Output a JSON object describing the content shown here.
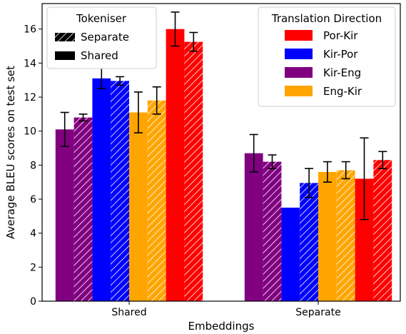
{
  "chart_data": {
    "type": "bar",
    "xlabel": "Embeddings",
    "ylabel": "Average BLEU scores on test set",
    "ylim": [
      0,
      17.5
    ],
    "yticks": [
      0,
      2,
      4,
      6,
      8,
      10,
      12,
      14,
      16
    ],
    "categories": [
      "Shared",
      "Separate"
    ],
    "grid": false,
    "colors": {
      "Por-Kir": "#ff0000",
      "Kir-Por": "#0000ff",
      "Kir-Eng": "#800080",
      "Eng-Kir": "#ffa500"
    },
    "bars_order": [
      {
        "direction": "Kir-Eng",
        "tokeniser": "Shared"
      },
      {
        "direction": "Kir-Eng",
        "tokeniser": "Separate"
      },
      {
        "direction": "Kir-Por",
        "tokeniser": "Shared"
      },
      {
        "direction": "Kir-Por",
        "tokeniser": "Separate"
      },
      {
        "direction": "Eng-Kir",
        "tokeniser": "Shared"
      },
      {
        "direction": "Eng-Kir",
        "tokeniser": "Separate"
      },
      {
        "direction": "Por-Kir",
        "tokeniser": "Shared"
      },
      {
        "direction": "Por-Kir",
        "tokeniser": "Separate"
      }
    ],
    "values": {
      "Shared": [
        10.1,
        10.8,
        13.1,
        12.95,
        11.1,
        11.8,
        16.0,
        15.25
      ],
      "Separate": [
        8.7,
        8.2,
        5.5,
        6.95,
        7.6,
        7.7,
        7.2,
        8.3
      ]
    },
    "errors": {
      "Shared": [
        1.0,
        0.2,
        0.6,
        0.25,
        1.2,
        0.8,
        1.0,
        0.55
      ],
      "Separate": [
        1.1,
        0.4,
        0.0,
        0.85,
        0.6,
        0.5,
        2.4,
        0.5
      ]
    },
    "legend_tokeniser": {
      "title": "Tokeniser",
      "placement": "top-left",
      "entries": [
        {
          "label": "Separate",
          "hatched": true
        },
        {
          "label": "Shared",
          "hatched": false
        }
      ]
    },
    "legend_direction": {
      "title": "Translation Direction",
      "placement": "top-right",
      "entries": [
        "Por-Kir",
        "Kir-Por",
        "Kir-Eng",
        "Eng-Kir"
      ]
    }
  }
}
